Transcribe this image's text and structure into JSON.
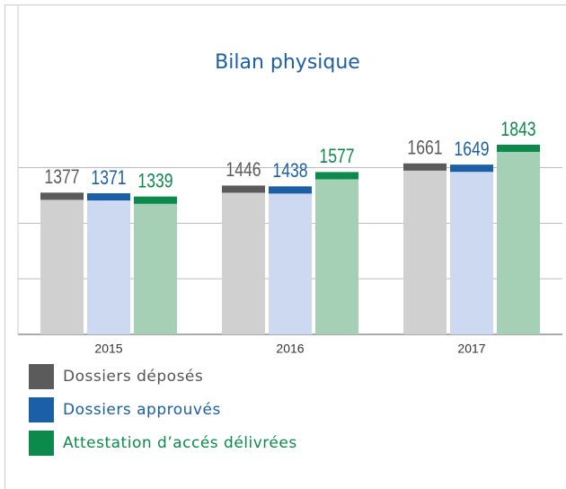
{
  "chart_data": {
    "type": "bar",
    "title": "Bilan physique",
    "categories": [
      "2015",
      "2016",
      "2017"
    ],
    "series": [
      {
        "name": "Dossiers déposés",
        "color": "#5b5b5b",
        "values": [
          1377,
          1446,
          1661
        ]
      },
      {
        "name": "Dossiers approuvés",
        "color": "#1b5fa6",
        "values": [
          1371,
          1438,
          1649
        ]
      },
      {
        "name": "Attestation d’accés délivrées",
        "color": "#0b8a4b",
        "values": [
          1339,
          1577,
          1843
        ]
      }
    ],
    "ylim": [
      0,
      2000
    ],
    "yticks": [
      0,
      540,
      1080,
      1620
    ],
    "grid": true
  }
}
